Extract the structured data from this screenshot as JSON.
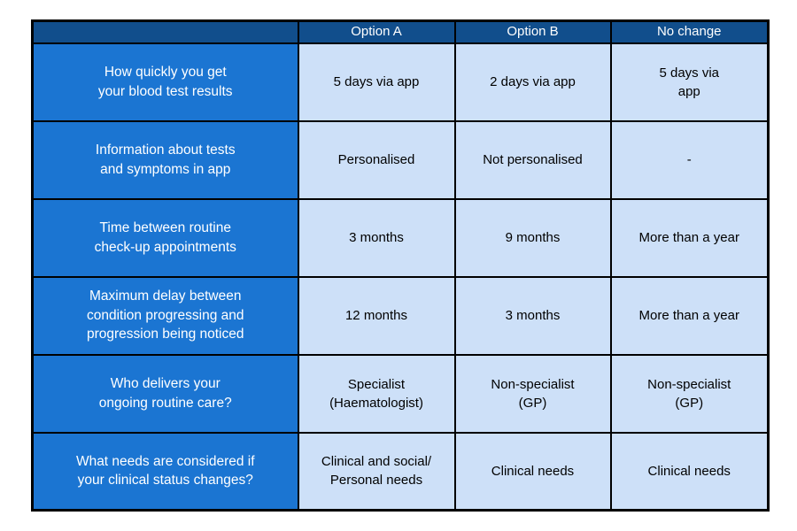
{
  "colors": {
    "header_bg": "#114E8C",
    "label_column_bg": "#1B75D2",
    "cell_bg": "#CDE0F8",
    "border": "#000000",
    "header_text": "#FFFFFF",
    "cell_text": "#000000"
  },
  "table": {
    "header": {
      "label_col": "",
      "columns": [
        "Option A",
        "Option B",
        "No change"
      ]
    },
    "rows": [
      {
        "label": "How quickly you get\nyour blood test results",
        "option_a": "5 days via app",
        "option_b": "2 days via app",
        "no_change": "5 days via\napp"
      },
      {
        "label": "Information about tests\nand symptoms in app",
        "option_a": "Personalised",
        "option_b": "Not personalised",
        "no_change": "-"
      },
      {
        "label": "Time between routine\ncheck-up appointments",
        "option_a": "3 months",
        "option_b": "9 months",
        "no_change": "More than a year"
      },
      {
        "label": "Maximum delay between\ncondition progressing and\nprogression being noticed",
        "option_a": "12 months",
        "option_b": "3 months",
        "no_change": "More than a year"
      },
      {
        "label": "Who delivers your\nongoing routine care?",
        "option_a": "Specialist\n(Haematologist)",
        "option_b": "Non-specialist\n(GP)",
        "no_change": "Non-specialist\n(GP)"
      },
      {
        "label": "What needs are considered if\nyour clinical status changes?",
        "option_a": "Clinical and social/\nPersonal needs",
        "option_b": "Clinical needs",
        "no_change": "Clinical needs"
      }
    ]
  }
}
